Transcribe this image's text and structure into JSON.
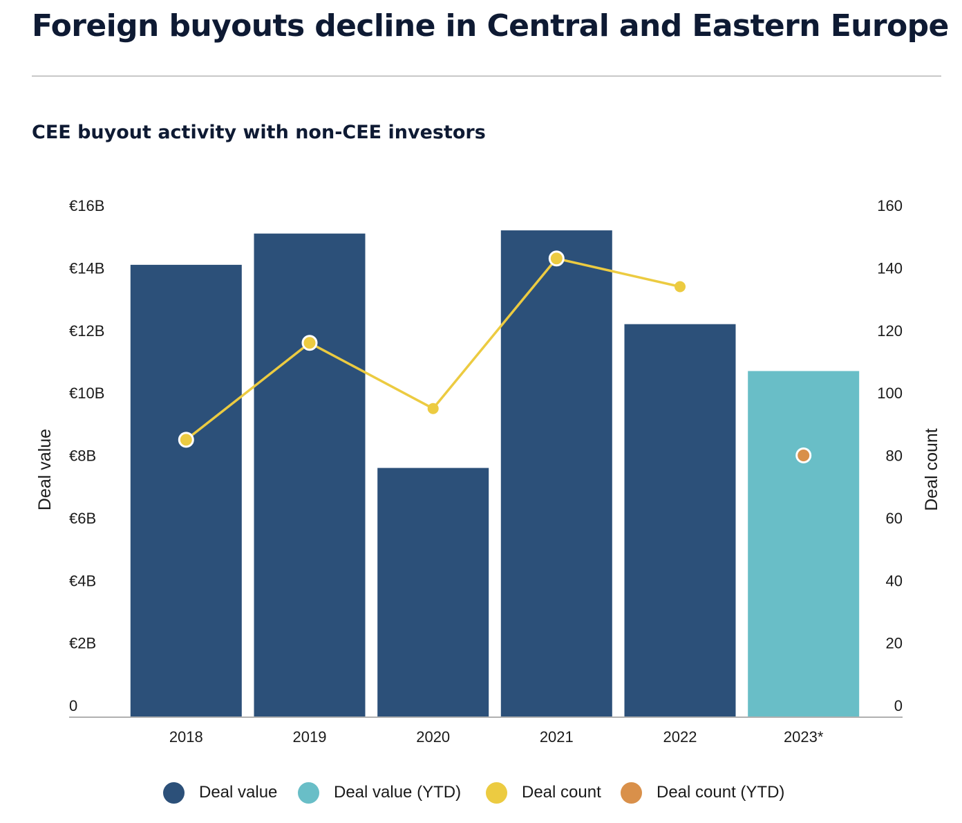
{
  "header": {
    "title": "Foreign buyouts decline in Central and Eastern Europe",
    "subtitle": "CEE buyout activity with non-CEE investors"
  },
  "colors": {
    "deal_value": "#2c5079",
    "deal_value_ytd": "#69bec7",
    "deal_count": "#eccb41",
    "deal_count_ytd": "#d9904a",
    "axis": "#b0b0b0",
    "text": "#0e1a33"
  },
  "legend": [
    {
      "label": "Deal value",
      "color": "#2c5079"
    },
    {
      "label": "Deal value (YTD)",
      "color": "#69bec7"
    },
    {
      "label": "Deal count",
      "color": "#eccb41"
    },
    {
      "label": "Deal count (YTD)",
      "color": "#d9904a"
    }
  ],
  "chart_data": {
    "type": "bar",
    "title": "CEE buyout activity with non-CEE investors",
    "categories": [
      "2018",
      "2019",
      "2020",
      "2021",
      "2022",
      "2023*"
    ],
    "ylabel": "Deal value",
    "y2label": "Deal count",
    "ylim": [
      0,
      16
    ],
    "y2lim": [
      0,
      160
    ],
    "y_tick_labels": [
      "0",
      "€2B",
      "€4B",
      "€6B",
      "€8B",
      "€10B",
      "€12B",
      "€14B",
      "€16B"
    ],
    "y2_tick_labels": [
      "0",
      "20",
      "40",
      "60",
      "80",
      "100",
      "120",
      "140",
      "160"
    ],
    "grid": false,
    "legend_position": "bottom",
    "series": [
      {
        "name": "Deal value",
        "kind": "bar",
        "axis": "left",
        "values": [
          14.1,
          15.1,
          7.6,
          15.2,
          12.2,
          null
        ]
      },
      {
        "name": "Deal value (YTD)",
        "kind": "bar",
        "axis": "left",
        "values": [
          null,
          null,
          null,
          null,
          null,
          10.7
        ]
      },
      {
        "name": "Deal count",
        "kind": "line",
        "axis": "right",
        "values": [
          85,
          116,
          95,
          143,
          134,
          null
        ],
        "outlined_markers": [
          true,
          true,
          false,
          true,
          false
        ]
      },
      {
        "name": "Deal count (YTD)",
        "kind": "point",
        "axis": "right",
        "values": [
          null,
          null,
          null,
          null,
          null,
          80
        ]
      }
    ]
  }
}
